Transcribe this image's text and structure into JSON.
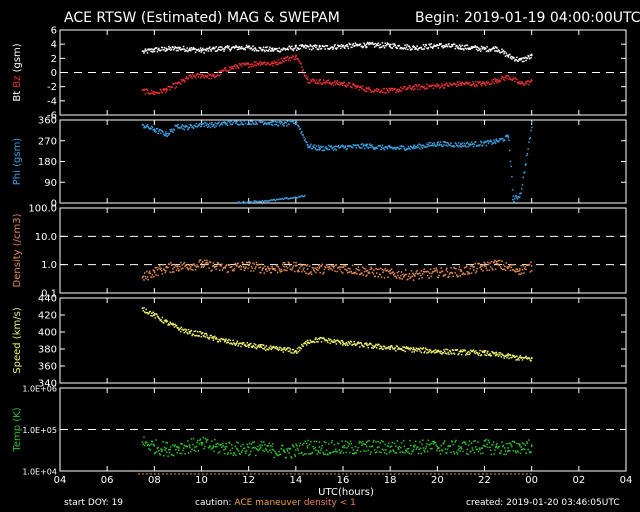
{
  "header": {
    "title": "ACE RTSW (Estimated) MAG & SWEPAM",
    "begin": "Begin: 2019-01-19 04:00:00UTC"
  },
  "footer": {
    "start_doy_label": "start DOY:",
    "start_doy": "19",
    "caution_label": "caution:",
    "caution_maneuver": "ACE maneuver",
    "caution_density": "density < 1",
    "created": "created: 2019-01-20 03:46:05UTC"
  },
  "colors": {
    "bt": "#ffffff",
    "bz": "#e03030",
    "phi": "#3aa0e0",
    "density": "#e08a50",
    "speed": "#f0f070",
    "temp": "#30c030",
    "caution_maneuver": "#f0a040",
    "caution_density": "#f08060"
  },
  "chart_data": [
    {
      "type": "scatter",
      "title": "",
      "xlabel": "UTC(hours)",
      "ylabel_parts": [
        "Bt",
        "Bz",
        "(gsm)"
      ],
      "ylim": [
        -6,
        6
      ],
      "yticks": [
        "6",
        "4",
        "2",
        "0",
        "-2",
        "-4",
        "-6"
      ],
      "zero_line": 0,
      "series": [
        {
          "name": "Bt",
          "x": [
            7.5,
            8,
            8.5,
            9,
            9.5,
            10,
            10.5,
            11,
            11.5,
            12,
            12.5,
            13,
            13.5,
            14,
            14.5,
            15,
            16,
            17,
            18,
            19,
            20,
            21,
            22,
            22.5,
            23,
            23.5,
            24
          ],
          "values": [
            3.0,
            3.3,
            3.4,
            3.5,
            3.4,
            3.2,
            3.4,
            3.5,
            3.6,
            3.6,
            3.4,
            3.3,
            3.4,
            3.6,
            3.7,
            3.6,
            3.8,
            4.0,
            3.9,
            3.6,
            3.9,
            3.7,
            3.4,
            3.5,
            2.4,
            1.8,
            2.4
          ]
        },
        {
          "name": "Bz",
          "x": [
            7.5,
            8,
            8.5,
            9,
            9.5,
            10,
            10.5,
            11,
            11.5,
            12,
            12.5,
            13,
            13.5,
            14,
            14.5,
            15,
            16,
            17,
            18,
            19,
            20,
            21,
            22,
            22.5,
            23,
            23.5,
            24
          ],
          "values": [
            -2.5,
            -2.8,
            -2.3,
            -1.5,
            -0.5,
            -0.3,
            -0.5,
            0.5,
            1.0,
            1.2,
            1.5,
            1.3,
            2.0,
            2.3,
            -1.0,
            -1.2,
            -1.5,
            -2.3,
            -2.5,
            -2.0,
            -1.8,
            -1.5,
            -1.5,
            -1.0,
            -0.5,
            -1.5,
            -1.2
          ]
        }
      ]
    },
    {
      "type": "scatter",
      "ylabel": "Phi (gsm)",
      "ylim": [
        0,
        360
      ],
      "yticks": [
        "360",
        "270",
        "180",
        "90",
        "0"
      ],
      "series": [
        {
          "name": "Phi",
          "x": [
            7.5,
            8,
            8.5,
            9,
            9.3,
            10,
            10.5,
            11,
            11.5,
            12,
            12.5,
            13,
            13.5,
            14,
            14.5,
            15,
            16,
            17,
            18,
            19,
            20,
            21,
            22,
            22.5,
            23,
            23.2,
            23.5,
            24
          ],
          "values": [
            340,
            320,
            300,
            340,
            330,
            345,
            340,
            350,
            352,
            355,
            355,
            350,
            345,
            355,
            250,
            240,
            245,
            250,
            240,
            245,
            260,
            255,
            262,
            270,
            290,
            15,
            40,
            350
          ],
          "low_x": [
            11.5,
            12,
            12.5,
            13,
            13.5,
            14,
            14.4
          ],
          "low_values": [
            2,
            5,
            8,
            12,
            18,
            25,
            32
          ]
        }
      ]
    },
    {
      "type": "scatter",
      "ylabel": "Density (/cm3)",
      "ylim": [
        0.1,
        100
      ],
      "yscale": "log",
      "yticks": [
        "100.0",
        "10.0",
        "1.0",
        "0.1"
      ],
      "reference_lines": [
        10,
        1
      ],
      "series": [
        {
          "name": "Density",
          "x": [
            7.5,
            8,
            8.5,
            9,
            9.5,
            10,
            10.5,
            11,
            11.5,
            12,
            12.5,
            13,
            13.5,
            14,
            14.5,
            15,
            16,
            17,
            18,
            19,
            20,
            21,
            22,
            22.5,
            23,
            23.5,
            24
          ],
          "values": [
            0.35,
            0.6,
            0.8,
            0.9,
            1.0,
            1.1,
            0.9,
            0.8,
            0.9,
            0.95,
            0.8,
            0.75,
            0.85,
            0.9,
            0.7,
            0.75,
            0.8,
            0.6,
            0.5,
            0.45,
            0.55,
            0.6,
            0.9,
            1.1,
            0.8,
            0.7,
            0.9
          ]
        }
      ]
    },
    {
      "type": "scatter",
      "ylabel": "Speed (km/s)",
      "ylim": [
        340,
        440
      ],
      "yticks": [
        "440",
        "420",
        "400",
        "380",
        "360",
        "340"
      ],
      "series": [
        {
          "name": "Speed",
          "x": [
            7.5,
            8,
            8.5,
            9,
            9.5,
            10,
            10.5,
            11,
            11.5,
            12,
            12.5,
            13,
            13.5,
            14,
            14.5,
            15,
            16,
            17,
            18,
            19,
            20,
            21,
            22,
            22.5,
            23,
            23.5,
            24
          ],
          "values": [
            428,
            420,
            412,
            405,
            400,
            398,
            393,
            390,
            387,
            385,
            383,
            381,
            380,
            378,
            390,
            392,
            388,
            385,
            382,
            380,
            378,
            377,
            376,
            374,
            372,
            370,
            369
          ]
        }
      ]
    },
    {
      "type": "scatter",
      "ylabel": "Temp (K)",
      "ylim": [
        10000,
        1000000
      ],
      "yscale": "log",
      "yticks": [
        "1.0E+06",
        "1.0E+05",
        "1.0E+04"
      ],
      "reference_lines": [
        100000
      ],
      "series": [
        {
          "name": "Temp",
          "x": [
            7.5,
            8,
            8.5,
            9,
            9.5,
            10,
            10.5,
            11,
            11.5,
            12,
            12.5,
            13,
            13.5,
            14,
            14.5,
            15,
            16,
            17,
            18,
            19,
            20,
            21,
            22,
            22.5,
            23,
            23.5,
            24
          ],
          "values": [
            50000,
            40000,
            35000,
            38000,
            42000,
            45000,
            40000,
            38000,
            35000,
            37000,
            36000,
            33000,
            30000,
            32000,
            40000,
            38000,
            37000,
            39000,
            38000,
            40000,
            39000,
            38000,
            40000,
            38000,
            36000,
            40000,
            42000
          ]
        }
      ]
    }
  ],
  "xaxis": {
    "xlim": [
      4,
      28
    ],
    "ticks": [
      "04",
      "06",
      "08",
      "10",
      "12",
      "14",
      "16",
      "18",
      "20",
      "22",
      "00",
      "02",
      "04"
    ],
    "xlabel": "UTC(hours)"
  }
}
